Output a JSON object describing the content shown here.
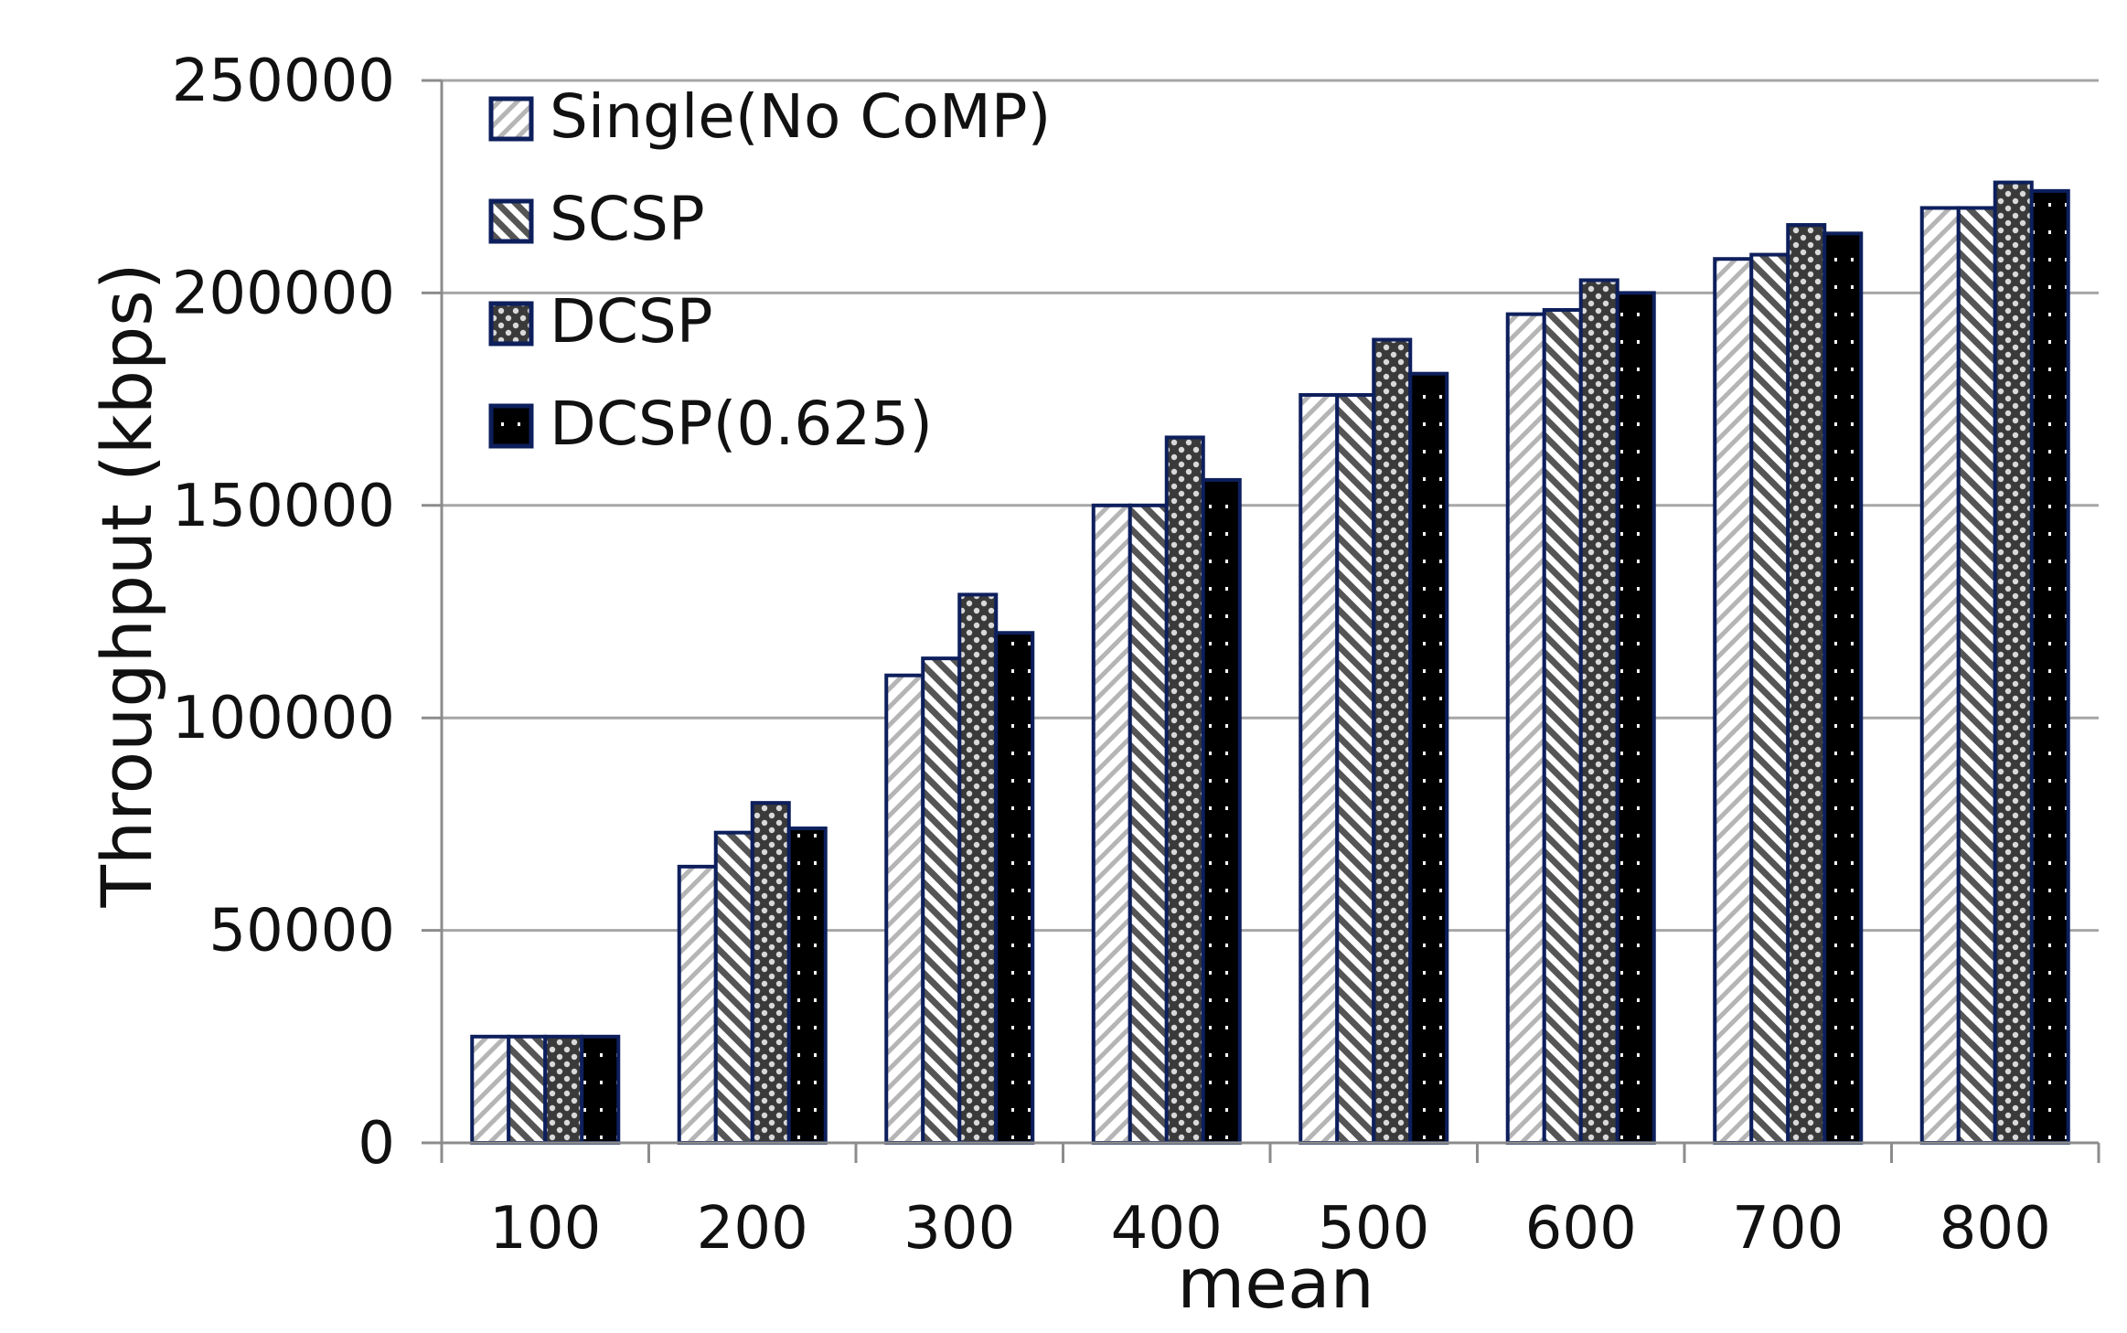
{
  "chart_data": {
    "type": "bar",
    "title": "",
    "xlabel": "mean",
    "ylabel": "Throughput (kbps)",
    "ylim": [
      0,
      250000
    ],
    "yticks": [
      0,
      50000,
      100000,
      150000,
      200000,
      250000
    ],
    "ytick_labels": [
      "0",
      "50000",
      "100000",
      "150000",
      "200000",
      "250000"
    ],
    "categories": [
      "100",
      "200",
      "300",
      "400",
      "500",
      "600",
      "700",
      "800"
    ],
    "grid": true,
    "legend_position": "top-left",
    "series": [
      {
        "name": "Single(No CoMP)",
        "pattern": "light-diagonal",
        "values": [
          25000,
          65000,
          110000,
          150000,
          176000,
          195000,
          208000,
          220000
        ]
      },
      {
        "name": "SCSP",
        "pattern": "dark-diagonal",
        "values": [
          25000,
          73000,
          114000,
          150000,
          176000,
          196000,
          209000,
          220000
        ]
      },
      {
        "name": "DCSP",
        "pattern": "checker",
        "values": [
          25000,
          80000,
          129000,
          166000,
          189000,
          203000,
          216000,
          226000
        ]
      },
      {
        "name": "DCSP(0.625)",
        "pattern": "dotted-black",
        "values": [
          25000,
          74000,
          120000,
          156000,
          181000,
          200000,
          214000,
          224000
        ]
      }
    ],
    "colors": {
      "bar_border": "#0d1f5c",
      "grid": "#a6a6a6",
      "axis": "#8c8c8c",
      "text": "#111111"
    }
  }
}
